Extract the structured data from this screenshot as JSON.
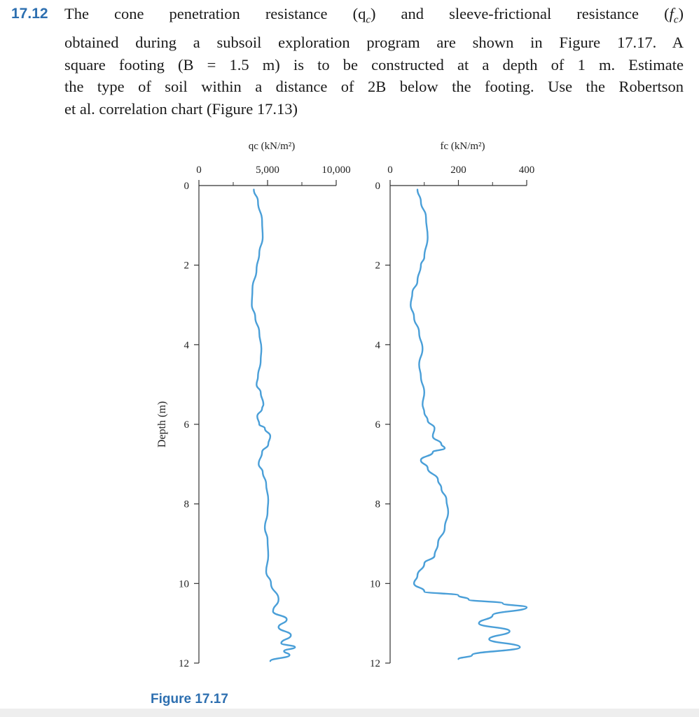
{
  "problem": {
    "number": "17.12",
    "lines": [
      "The cone penetration resistance (q",
      "obtained during a subsoil exploration program are shown in Figure 17.17. A",
      "square footing (B = 1.5 m) is to be constructed at a depth of 1 m. Estimate",
      "the type of soil within a distance of 2B below the footing. Use the Robertson",
      "et al. correlation chart (Figure 17.13)"
    ]
  },
  "figure": {
    "caption": "Figure 17.17",
    "colors": {
      "curve": "#4a9fd8",
      "axis": "#333333",
      "accent": "#2d6fb0"
    },
    "chart_data": [
      {
        "type": "line",
        "title": "qc (kN/m²)",
        "ylabel": "Depth (m)",
        "x_ticks": [
          "0",
          "5,000",
          "10,000"
        ],
        "y_ticks": [
          "0",
          "2",
          "4",
          "6",
          "8",
          "10",
          "12"
        ],
        "xlim": [
          0,
          10000
        ],
        "ylim": [
          0,
          12
        ],
        "series": [
          {
            "x": [
              4000,
              4300,
              4600,
              4650,
              4400,
              4200,
              3900,
              3850,
              4100,
              4400,
              4550,
              4500,
              4300,
              4200,
              4500,
              4700,
              4600,
              4250,
              4400,
              4800,
              5200,
              5050,
              4600,
              4350,
              4650,
              4900,
              5050,
              5000,
              4800,
              5000,
              5050,
              4900,
              5250,
              5800,
              5400,
              6400,
              5800,
              6700,
              6000,
              7000,
              6200,
              6600,
              5200
            ],
            "y": [
              0.1,
              0.4,
              0.9,
              1.3,
              1.7,
              2.1,
              2.6,
              3.0,
              3.3,
              3.7,
              4.1,
              4.4,
              4.8,
              5.0,
              5.2,
              5.5,
              5.6,
              5.8,
              6.0,
              6.1,
              6.3,
              6.5,
              6.7,
              7.0,
              7.2,
              7.5,
              7.9,
              8.2,
              8.6,
              8.9,
              9.3,
              9.7,
              10.0,
              10.4,
              10.7,
              10.9,
              11.1,
              11.3,
              11.5,
              11.6,
              11.7,
              11.8,
              11.95
            ]
          }
        ]
      },
      {
        "type": "line",
        "title": "fc (kN/m²)",
        "ylabel": "",
        "x_ticks": [
          "0",
          "200",
          "400"
        ],
        "y_ticks": [
          "0",
          "2",
          "4",
          "6",
          "8",
          "10",
          "12"
        ],
        "xlim": [
          0,
          400
        ],
        "ylim": [
          0,
          12
        ],
        "series": [
          {
            "x": [
              80,
              90,
              105,
              110,
              100,
              90,
              80,
              65,
              60,
              70,
              85,
              95,
              85,
              90,
              100,
              95,
              100,
              110,
              130,
              125,
              150,
              160,
              125,
              90,
              110,
              140,
              150,
              165,
              170,
              160,
              140,
              130,
              100,
              80,
              70,
              100,
              200,
              230,
              330,
              400,
              300,
              260,
              350,
              290,
              380,
              240,
              200
            ],
            "y": [
              0.1,
              0.4,
              0.8,
              1.3,
              1.8,
              2.0,
              2.4,
              2.7,
              3.0,
              3.3,
              3.7,
              4.1,
              4.5,
              4.8,
              5.2,
              5.5,
              5.7,
              5.9,
              6.1,
              6.3,
              6.5,
              6.6,
              6.7,
              6.9,
              7.1,
              7.4,
              7.6,
              7.9,
              8.2,
              8.6,
              9.0,
              9.3,
              9.5,
              9.8,
              10.0,
              10.2,
              10.3,
              10.4,
              10.5,
              10.6,
              10.8,
              11.0,
              11.2,
              11.4,
              11.6,
              11.8,
              11.9
            ]
          }
        ]
      }
    ]
  }
}
